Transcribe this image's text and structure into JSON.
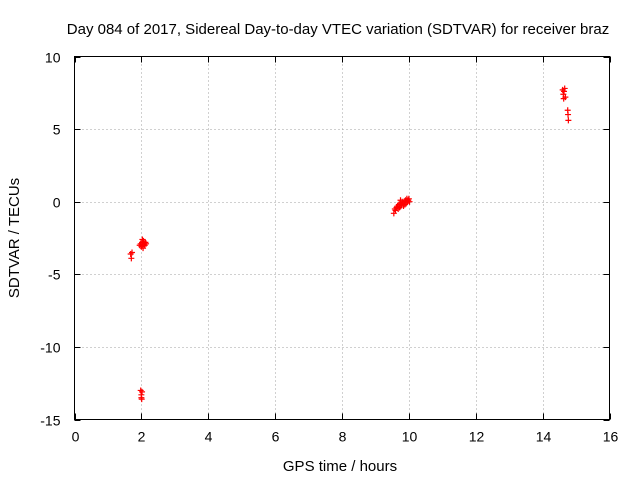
{
  "chart_data": {
    "type": "scatter",
    "title": "Day 084 of 2017, Sidereal Day-to-day VTEC variation (SDTVAR) for receiver braz",
    "xlabel": "GPS time / hours",
    "ylabel": "SDTVAR / TECUs",
    "xlim": [
      0,
      16
    ],
    "ylim": [
      -15,
      10
    ],
    "xticks": [
      0,
      2,
      4,
      6,
      8,
      10,
      12,
      14,
      16
    ],
    "yticks": [
      -15,
      -10,
      -5,
      0,
      5,
      10
    ],
    "xtick_labels": [
      "0",
      "2",
      "4",
      "6",
      "8",
      "10",
      "12",
      "14",
      "16"
    ],
    "ytick_labels": [
      "-15",
      "-10",
      "-5",
      "0",
      "5",
      "10"
    ],
    "grid": true,
    "grid_style": "dotted",
    "marker": "plus",
    "color": "#ff0000",
    "series": [
      {
        "points": [
          [
            1.68,
            -3.6
          ],
          [
            1.7,
            -3.9
          ],
          [
            1.72,
            -3.5
          ],
          [
            1.95,
            -3.0
          ],
          [
            1.98,
            -2.9
          ],
          [
            2.0,
            -3.1
          ],
          [
            2.02,
            -2.8
          ],
          [
            2.04,
            -3.0
          ],
          [
            2.06,
            -2.7
          ],
          [
            2.08,
            -2.9
          ],
          [
            2.1,
            -3.0
          ],
          [
            2.12,
            -2.8
          ],
          [
            2.14,
            -2.9
          ],
          [
            2.05,
            -3.2
          ],
          [
            2.03,
            -2.6
          ],
          [
            1.98,
            -13.0
          ],
          [
            2.0,
            -13.3
          ],
          [
            2.01,
            -13.6
          ],
          [
            2.02,
            -13.1
          ],
          [
            2.0,
            -13.5
          ],
          [
            9.55,
            -0.8
          ],
          [
            9.58,
            -0.5
          ],
          [
            9.6,
            -0.6
          ],
          [
            9.63,
            -0.4
          ],
          [
            9.66,
            -0.3
          ],
          [
            9.68,
            -0.5
          ],
          [
            9.7,
            -0.2
          ],
          [
            9.72,
            -0.4
          ],
          [
            9.74,
            -0.1
          ],
          [
            9.76,
            -0.3
          ],
          [
            9.78,
            -0.2
          ],
          [
            9.8,
            0.0
          ],
          [
            9.82,
            -0.1
          ],
          [
            9.84,
            -0.3
          ],
          [
            9.86,
            0.0
          ],
          [
            9.88,
            -0.2
          ],
          [
            9.9,
            0.1
          ],
          [
            9.92,
            -0.1
          ],
          [
            9.94,
            0.2
          ],
          [
            9.96,
            0.0
          ],
          [
            9.98,
            0.1
          ],
          [
            10.0,
            0.2
          ],
          [
            10.02,
            0.0
          ],
          [
            9.75,
            0.1
          ],
          [
            14.6,
            7.7
          ],
          [
            14.62,
            7.4
          ],
          [
            14.64,
            7.6
          ],
          [
            14.66,
            7.8
          ],
          [
            14.68,
            7.2
          ],
          [
            14.63,
            7.1
          ],
          [
            14.75,
            6.3
          ],
          [
            14.76,
            6.0
          ],
          [
            14.77,
            5.6
          ]
        ]
      }
    ]
  }
}
